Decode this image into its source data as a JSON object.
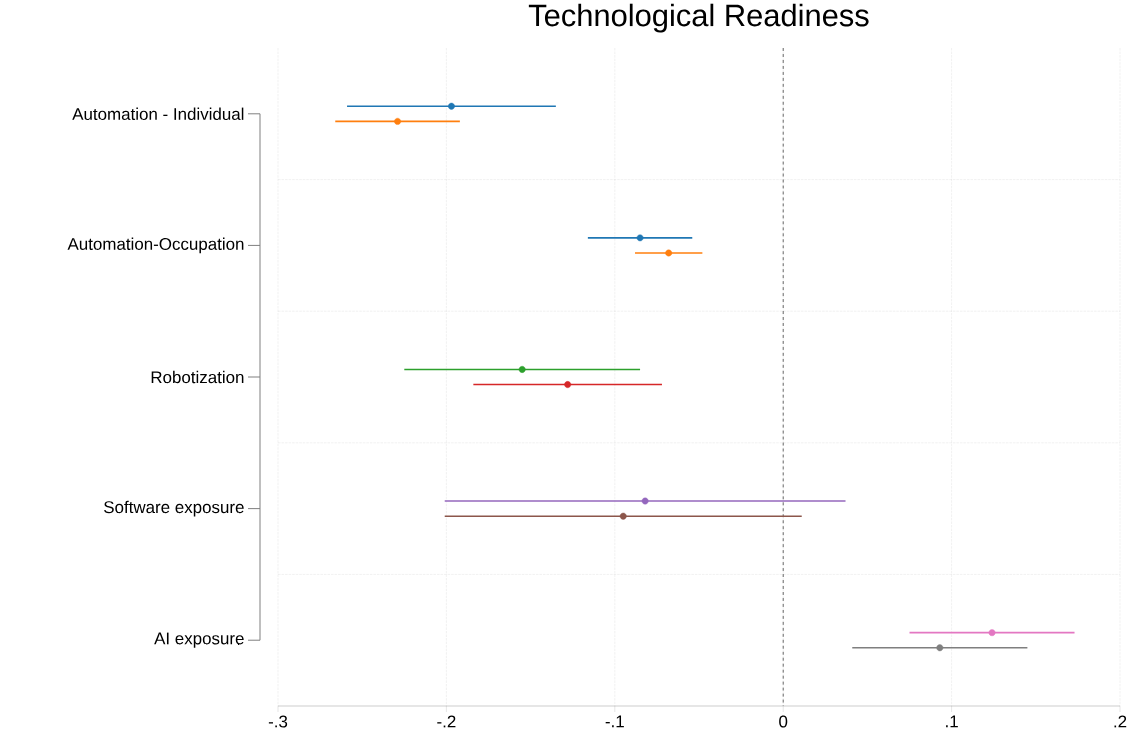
{
  "chart_data": {
    "type": "scatter",
    "orientation": "horizontal",
    "title": "Technological Readiness",
    "categories": [
      "Automation - Individual",
      "Automation-Occupation",
      "Robotization",
      "Software exposure",
      "AI exposure"
    ],
    "series": [
      {
        "color": "#1f77b4",
        "values": [
          -0.197,
          -0.085,
          null,
          null,
          null
        ],
        "errors": [
          0.062,
          0.031,
          null,
          null,
          null
        ]
      },
      {
        "color": "#ff7f0e",
        "values": [
          -0.229,
          -0.068,
          null,
          null,
          null
        ],
        "errors": [
          0.037,
          0.02,
          null,
          null,
          null
        ]
      },
      {
        "color": "#2ca02c",
        "values": [
          null,
          null,
          -0.155,
          null,
          null
        ],
        "errors": [
          null,
          null,
          0.07,
          null,
          null
        ]
      },
      {
        "color": "#d62728",
        "values": [
          null,
          null,
          -0.128,
          null,
          null
        ],
        "errors": [
          null,
          null,
          0.056,
          null,
          null
        ]
      },
      {
        "color": "#9467bd",
        "values": [
          null,
          null,
          null,
          -0.082,
          null
        ],
        "errors": [
          null,
          null,
          null,
          0.119,
          null
        ]
      },
      {
        "color": "#8c564b",
        "values": [
          null,
          null,
          null,
          -0.095,
          null
        ],
        "errors": [
          null,
          null,
          null,
          0.106,
          null
        ]
      },
      {
        "color": "#e377c2",
        "values": [
          null,
          null,
          null,
          null,
          0.124
        ],
        "errors": [
          null,
          null,
          null,
          null,
          0.049
        ]
      },
      {
        "color": "#7f7f7f",
        "values": [
          null,
          null,
          null,
          null,
          0.093
        ],
        "errors": [
          null,
          null,
          null,
          null,
          0.052
        ]
      }
    ],
    "xlim": [
      -0.3,
      0.2
    ],
    "xticks": [
      {
        "value": -0.3,
        "label": "-.3"
      },
      {
        "value": -0.2,
        "label": "-.2"
      },
      {
        "value": -0.1,
        "label": "-.1"
      },
      0,
      {
        "value": 0.1,
        "label": ".1"
      },
      {
        "value": 0.2,
        "label": ".2"
      }
    ],
    "ref_lines": [
      {
        "axis": "x",
        "value": 0,
        "color": "#666666",
        "line_style": "dashed"
      }
    ],
    "grid": true,
    "marker": "circle"
  }
}
